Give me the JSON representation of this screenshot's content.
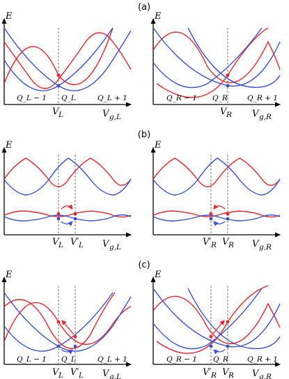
{
  "colors": {
    "red": "#e8242c",
    "blue": "#3a4fd8",
    "axis": "#000000",
    "dashed": "#777777"
  },
  "panels": {
    "a": {
      "label": "(a)",
      "left": {
        "y_label": "E",
        "x_label": "V_{g,L}",
        "vlines": [
          "V_L"
        ],
        "charges": [
          "Q_L − 1",
          "Q_L",
          "Q_L + 1"
        ]
      },
      "right": {
        "y_label": "E",
        "x_label": "V_{g,R}",
        "vlines": [
          "V_R"
        ],
        "charges": [
          "Q_R − 1",
          "Q_R",
          "Q_R + 1"
        ]
      }
    },
    "b": {
      "label": "(b)",
      "left": {
        "y_label": "E",
        "x_label": "V_{g,L}",
        "vlines": [
          "V_L",
          "V′_L"
        ]
      },
      "right": {
        "y_label": "E",
        "x_label": "V_{g,R}",
        "vlines": [
          "V′_R",
          "V_R"
        ]
      }
    },
    "c": {
      "label": "(c)",
      "left": {
        "y_label": "E",
        "x_label": "V_{g,L}",
        "vlines": [
          "V_L",
          "V′_L"
        ],
        "charges": [
          "Q_L − 1",
          "Q_L",
          "Q_L + 1"
        ]
      },
      "right": {
        "y_label": "E",
        "x_label": "V_{g,R}",
        "vlines": [
          "V′_R",
          "V_R"
        ],
        "charges": [
          "Q_R − 1",
          "Q_R",
          "Q_R + 1"
        ]
      }
    }
  }
}
